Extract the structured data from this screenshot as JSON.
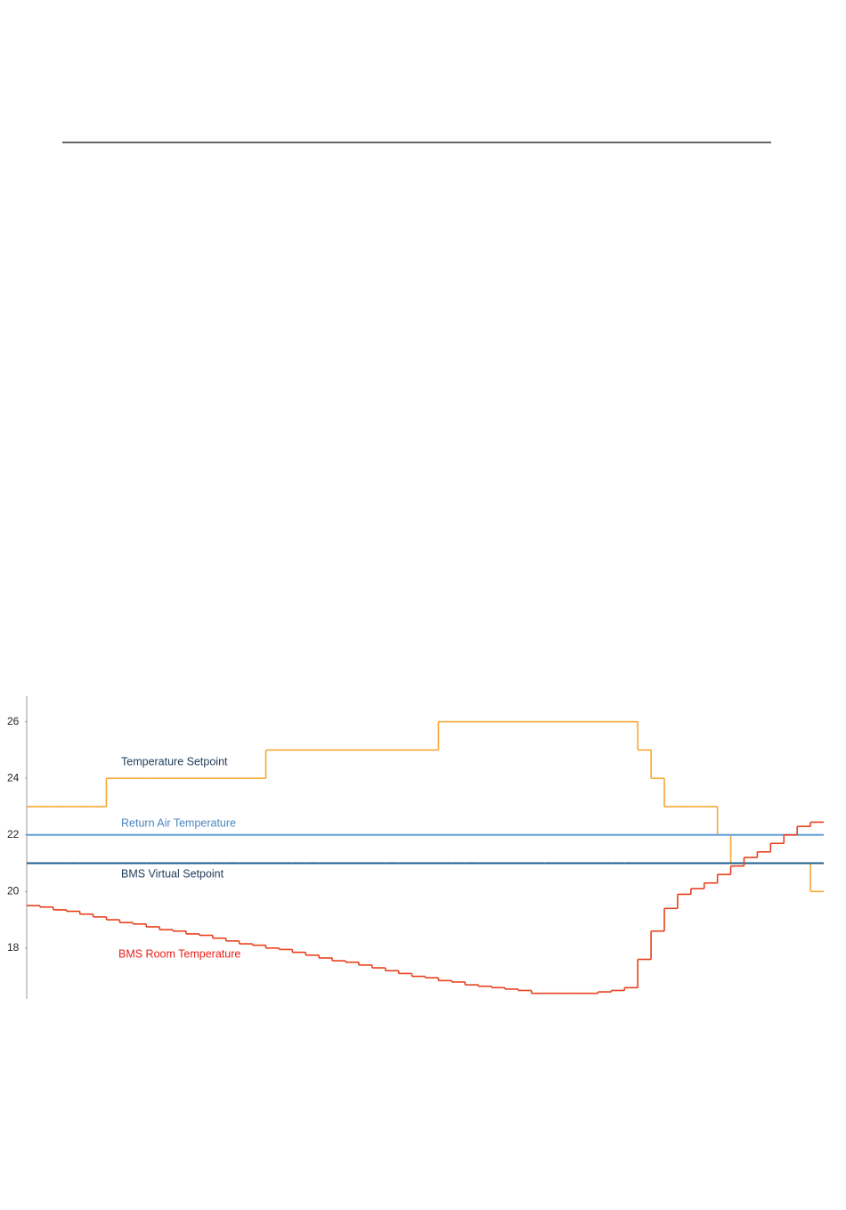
{
  "chart_data": {
    "type": "step",
    "categories": [
      null,
      null,
      null,
      null,
      null,
      null,
      null,
      null,
      null,
      null,
      null,
      null,
      null,
      null,
      null,
      null,
      null,
      null,
      null,
      null,
      null,
      null,
      null,
      null,
      null,
      null,
      null,
      null,
      null,
      null,
      null,
      null,
      null,
      null,
      null,
      null,
      null,
      null,
      null,
      null,
      null,
      null,
      null,
      null,
      null,
      null,
      null,
      null,
      null,
      null,
      null,
      null,
      null,
      null,
      null,
      null,
      null,
      null,
      null,
      null
    ],
    "ylim": [
      16.2,
      26.9
    ],
    "yticks": [
      18,
      20,
      22,
      24,
      26
    ],
    "series": [
      {
        "name": "Temperature Setpoint",
        "color": "#f5a733",
        "label_color": "#1f3b5a",
        "values": [
          23,
          23,
          23,
          23,
          23,
          23,
          24,
          24,
          24,
          24,
          24,
          24,
          24,
          24,
          24,
          24,
          24,
          24,
          25,
          25,
          25,
          25,
          25,
          25,
          25,
          25,
          25,
          25,
          25,
          25,
          25,
          26,
          26,
          26,
          26,
          26,
          26,
          26,
          26,
          26,
          26,
          26,
          26,
          26,
          26,
          26,
          25,
          24,
          23,
          23,
          23,
          23,
          22,
          21,
          21,
          21,
          21,
          21,
          21,
          20
        ]
      },
      {
        "name": "Return Air Temperature",
        "color": "#5b9bd5",
        "label_color": "#4a86c0",
        "values": [
          22,
          22,
          22,
          22,
          22,
          22,
          22,
          22,
          22,
          22,
          22,
          22,
          22,
          22,
          22,
          22,
          22,
          22,
          22,
          22,
          22,
          22,
          22,
          22,
          22,
          22,
          22,
          22,
          22,
          22,
          22,
          22,
          22,
          22,
          22,
          22,
          22,
          22,
          22,
          22,
          22,
          22,
          22,
          22,
          22,
          22,
          22,
          22,
          22,
          22,
          22,
          22,
          22,
          22,
          22,
          22,
          22,
          22,
          22,
          22
        ]
      },
      {
        "name": "BMS Virtual Setpoint",
        "color": "#1f5e8c",
        "label_color": "#1f3b5a",
        "values": [
          21,
          21,
          21,
          21,
          21,
          21,
          21,
          21,
          21,
          21,
          21,
          21,
          21,
          21,
          21,
          21,
          21,
          21,
          21,
          21,
          21,
          21,
          21,
          21,
          21,
          21,
          21,
          21,
          21,
          21,
          21,
          21,
          21,
          21,
          21,
          21,
          21,
          21,
          21,
          21,
          21,
          21,
          21,
          21,
          21,
          21,
          21,
          21,
          21,
          21,
          21,
          21,
          21,
          21,
          21,
          21,
          21,
          21,
          21,
          21
        ]
      },
      {
        "name": "BMS Room Temperature",
        "color": "#e8401c",
        "label_color": "#e8201c",
        "values": [
          19.5,
          19.45,
          19.35,
          19.3,
          19.2,
          19.1,
          19.0,
          18.9,
          18.85,
          18.75,
          18.65,
          18.6,
          18.5,
          18.45,
          18.35,
          18.25,
          18.15,
          18.1,
          18.0,
          17.95,
          17.85,
          17.75,
          17.65,
          17.55,
          17.5,
          17.4,
          17.3,
          17.2,
          17.1,
          17.0,
          16.95,
          16.85,
          16.8,
          16.7,
          16.65,
          16.6,
          16.55,
          16.5,
          16.4,
          16.4,
          16.4,
          16.4,
          16.4,
          16.45,
          16.5,
          16.6,
          17.6,
          18.6,
          19.4,
          19.9,
          20.1,
          20.3,
          20.6,
          20.9,
          21.2,
          21.4,
          21.7,
          22.0,
          22.3,
          22.45
        ]
      }
    ]
  }
}
